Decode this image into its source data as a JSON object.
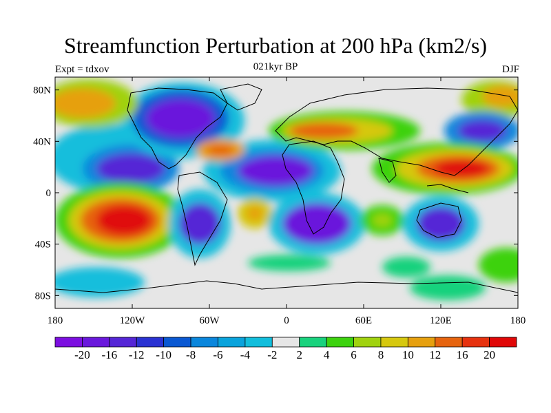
{
  "title": "Streamfunction Perturbation at 200 hPa (km2/s)",
  "subtitle_left": "Expt = tdxov",
  "subtitle_center": "021kyr BP",
  "subtitle_right": "DJF",
  "lon_ticks": [
    "180",
    "120W",
    "60W",
    "0",
    "60E",
    "120E",
    "180"
  ],
  "lat_ticks": [
    "80N",
    "40N",
    "0",
    "40S",
    "80S"
  ],
  "colorbar": {
    "labels": [
      "-20",
      "-16",
      "-12",
      "-10",
      "-8",
      "-6",
      "-4",
      "-2",
      "2",
      "4",
      "6",
      "8",
      "10",
      "12",
      "16",
      "20"
    ],
    "colors": [
      "#7c0fe0",
      "#6a18dc",
      "#5526d6",
      "#2a32d2",
      "#0a58d2",
      "#0a86dc",
      "#0aa3dc",
      "#12bedc",
      "#e6e6e6",
      "#19d27d",
      "#3dd20f",
      "#a0d20f",
      "#d6c80f",
      "#e6a00f",
      "#e6640f",
      "#e6320f",
      "#e00808"
    ]
  }
}
